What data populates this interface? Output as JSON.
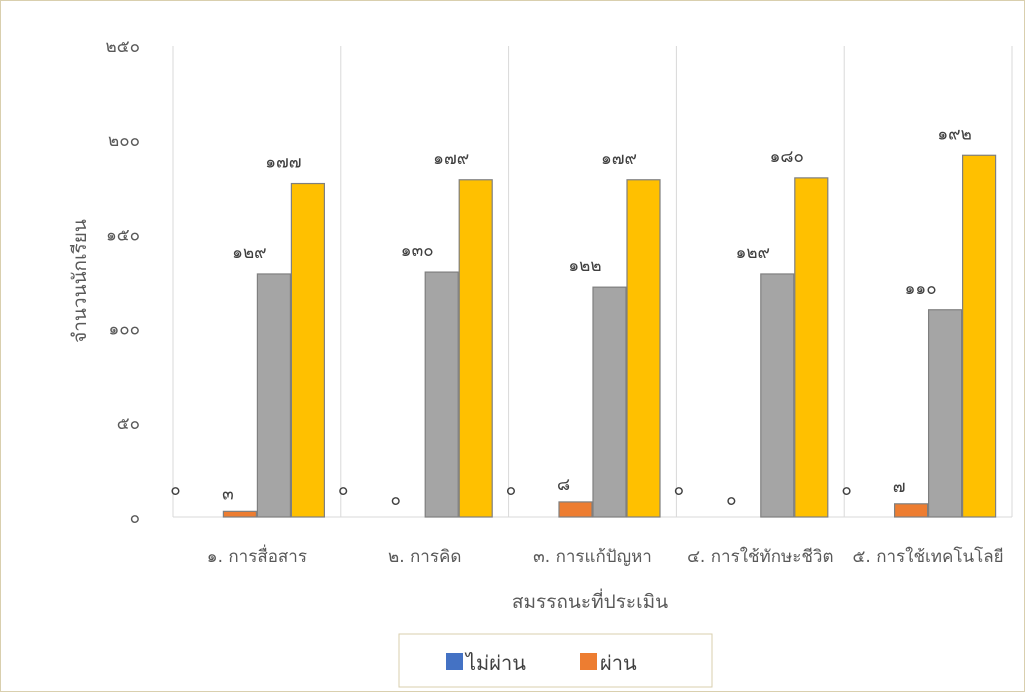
{
  "chart_data": {
    "type": "bar",
    "title": "",
    "xlabel": "สมรรถนะที่ประเมิน",
    "ylabel": "จำนวนนักเรียน",
    "ylim": [
      0,
      250
    ],
    "yticks": [
      0,
      50,
      100,
      150,
      200,
      250
    ],
    "ytick_labels": [
      "๐",
      "๕๐",
      "๑๐๐",
      "๑๕๐",
      "๒๐๐",
      "๒๕๐"
    ],
    "categories": [
      "๑. การสื่อสาร",
      "๒. การคิด",
      "๓. การแก้ปัญหา",
      "๔. การใช้ทักษะชีวิต",
      "๕. การใช้เทคโนโลยี"
    ],
    "series": [
      {
        "name": "ไม่ผ่าน",
        "color": "#4472c4",
        "values": [
          0,
          0,
          0,
          0,
          0
        ],
        "labels": [
          "๐",
          "๐",
          "๐",
          "๐",
          "๐"
        ]
      },
      {
        "name": "ผ่าน",
        "color": "#ed7d31",
        "values": [
          3,
          0,
          8,
          0,
          7
        ],
        "labels": [
          "๓",
          "๐",
          "๘",
          "๐",
          "๗"
        ]
      },
      {
        "name": "",
        "color": "#a5a5a5",
        "values": [
          129,
          130,
          122,
          129,
          110
        ],
        "labels": [
          "๑๒๙",
          "๑๓๐",
          "๑๒๒",
          "๑๒๙",
          "๑๑๐"
        ]
      },
      {
        "name": "",
        "color": "#ffc000",
        "values": [
          177,
          179,
          179,
          180,
          192
        ],
        "labels": [
          "๑๗๗",
          "๑๗๙",
          "๑๗๙",
          "๑๘๐",
          "๑๙๒"
        ]
      }
    ],
    "grid": "vertical category separators",
    "legend": "bottom",
    "legend_entries": [
      "ไม่ผ่าน",
      "ผ่าน"
    ]
  }
}
